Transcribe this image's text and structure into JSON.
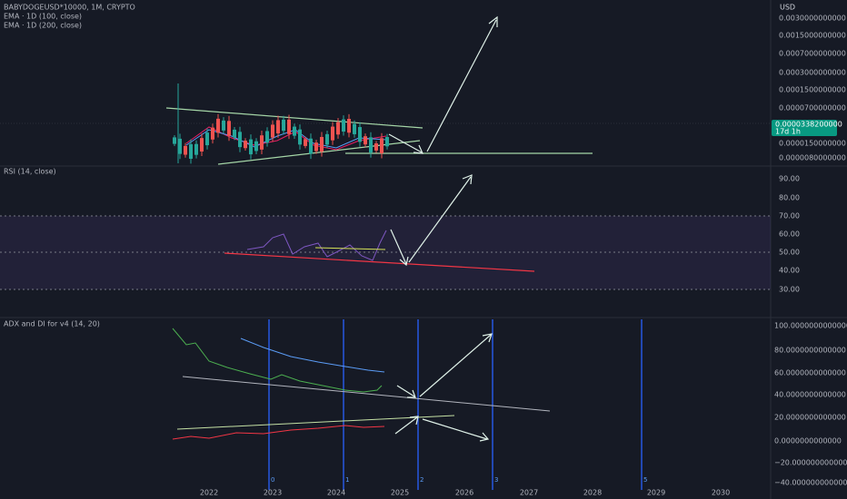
{
  "header": {
    "symbol": "BABYDOGEUSD*10000, 1M, CRYPTO",
    "indicators": [
      "EMA · 1D (100, close)",
      "EMA · 1D (200, close)"
    ]
  },
  "price_axis": {
    "currency": "USD",
    "labels": [
      "0.0030000000000",
      "0.0015000000000",
      "0.0007000000000",
      "0.0003000000000",
      "0.0001500000000",
      "0.0000700000000",
      "0.0000150000000",
      "0.0000080000000"
    ],
    "last_price": "0.0000338200000",
    "countdown": "17d 1h"
  },
  "rsi": {
    "title": "RSI (14, close)",
    "labels": [
      "90.00",
      "80.00",
      "70.00",
      "60.00",
      "50.00",
      "40.00",
      "30.00"
    ]
  },
  "adx": {
    "title": "ADX and DI for v4 (14, 20)",
    "labels": [
      "100.0000000000000",
      "80.0000000000000",
      "60.0000000000000",
      "40.0000000000000",
      "20.0000000000000",
      "0.0000000000000",
      "−20.0000000000000",
      "−40.0000000000000"
    ]
  },
  "time_axis": {
    "labels": [
      "2022",
      "2023",
      "2024",
      "2025",
      "2026",
      "2027",
      "2028",
      "2029",
      "2030"
    ]
  },
  "markers": [
    "0",
    "1",
    "2",
    "3",
    "5"
  ]
}
